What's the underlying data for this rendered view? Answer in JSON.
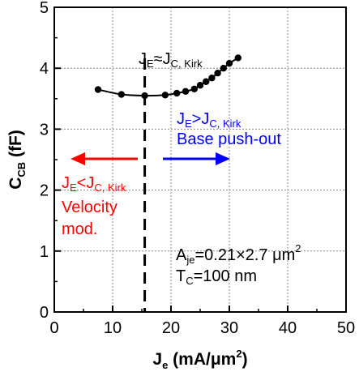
{
  "chart_data": {
    "type": "scatter",
    "x": [
      7.5,
      11.5,
      15.5,
      19.0,
      21.0,
      22.5,
      24.0,
      25.0,
      26.0,
      27.0,
      28.0,
      29.0,
      30.0,
      31.5
    ],
    "y": [
      3.65,
      3.57,
      3.55,
      3.56,
      3.59,
      3.62,
      3.66,
      3.72,
      3.78,
      3.84,
      3.92,
      4.0,
      4.08,
      4.17
    ],
    "xlabel": {
      "main": "J",
      "sub": "e",
      "rest": " (mA/μm",
      "sup": "2",
      "tail": ")"
    },
    "ylabel": {
      "main": "C",
      "sub": "CB",
      "rest": " (fF)"
    },
    "xlim": [
      0,
      50
    ],
    "ylim": [
      0,
      5
    ],
    "xticks": [
      "0",
      "10",
      "20",
      "30",
      "40",
      "50"
    ],
    "yticks": [
      "0",
      "1",
      "2",
      "3",
      "4",
      "5"
    ],
    "grid": true,
    "marker_color": "#000000",
    "vline": {
      "x": 15.5,
      "style": "dashed",
      "color": "#000000"
    },
    "annotations": {
      "vline_label": {
        "a": "J",
        "a_sub": "E",
        "b": "≈J",
        "b_sub": "C, Kirk",
        "color": "#000000"
      },
      "right": {
        "a": "J",
        "a_sub": "E",
        "b": ">J",
        "b_sub": "C, Kirk",
        "line2": "Base push-out",
        "color": "#0000ff"
      },
      "left": {
        "a": "J",
        "a_sub": "E",
        "b": "<J",
        "b_sub": "C, Kirk",
        "line2": "Velocity",
        "line3": "mod.",
        "color": "#ff0000"
      },
      "params": {
        "a": "A",
        "a_sub": "je",
        "b": "=0.21×2.7 μm",
        "b_sup": "2",
        "c": "T",
        "c_sub": "C",
        "d": "=100 nm",
        "color": "#000000"
      }
    }
  }
}
